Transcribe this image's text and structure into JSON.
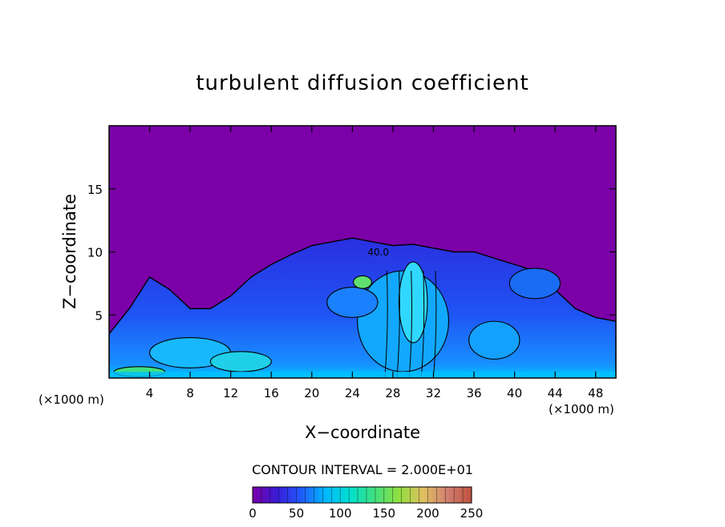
{
  "chart_data": {
    "type": "heatmap",
    "title": "turbulent diffusion coefficient",
    "xlabel": "X−coordinate",
    "ylabel": "Z−coordinate",
    "x_unit_label": "(×1000 m)",
    "x_unit_label_right": "(×1000 m)",
    "xlim": [
      0,
      50
    ],
    "ylim": [
      0,
      20
    ],
    "x_ticks": [
      4,
      8,
      12,
      16,
      20,
      24,
      28,
      32,
      36,
      40,
      44,
      48
    ],
    "y_ticks": [
      5,
      10,
      15
    ],
    "contour_interval_label": "CONTOUR INTERVAL = 2.000E+01",
    "colorbar": {
      "min": 0,
      "max": 250,
      "ticks": [
        0,
        50,
        100,
        150,
        200,
        250
      ],
      "colors": [
        "#7b00a8",
        "#3a1bd6",
        "#1f5bff",
        "#00b8ff",
        "#00e0d0",
        "#40e080",
        "#90e040",
        "#e0c060",
        "#d08070",
        "#c05040"
      ]
    },
    "background_value": 0,
    "background_color": "#7b00a8",
    "contour_annotation": "40.0",
    "max_cloud_top_z": 11.3,
    "cloud_envelope": [
      {
        "x": 0,
        "z": 3.5
      },
      {
        "x": 2,
        "z": 5.5
      },
      {
        "x": 4,
        "z": 8.0
      },
      {
        "x": 6,
        "z": 7.0
      },
      {
        "x": 8,
        "z": 5.5
      },
      {
        "x": 10,
        "z": 5.5
      },
      {
        "x": 12,
        "z": 6.5
      },
      {
        "x": 14,
        "z": 8.0
      },
      {
        "x": 16,
        "z": 9.0
      },
      {
        "x": 18,
        "z": 9.8
      },
      {
        "x": 20,
        "z": 10.5
      },
      {
        "x": 22,
        "z": 10.8
      },
      {
        "x": 24,
        "z": 11.1
      },
      {
        "x": 26,
        "z": 10.8
      },
      {
        "x": 28,
        "z": 10.5
      },
      {
        "x": 30,
        "z": 10.6
      },
      {
        "x": 32,
        "z": 10.3
      },
      {
        "x": 34,
        "z": 10.0
      },
      {
        "x": 36,
        "z": 10.0
      },
      {
        "x": 38,
        "z": 9.5
      },
      {
        "x": 40,
        "z": 9.0
      },
      {
        "x": 42,
        "z": 8.5
      },
      {
        "x": 44,
        "z": 7.0
      },
      {
        "x": 46,
        "z": 5.5
      },
      {
        "x": 48,
        "z": 4.8
      },
      {
        "x": 50,
        "z": 4.5
      }
    ]
  }
}
